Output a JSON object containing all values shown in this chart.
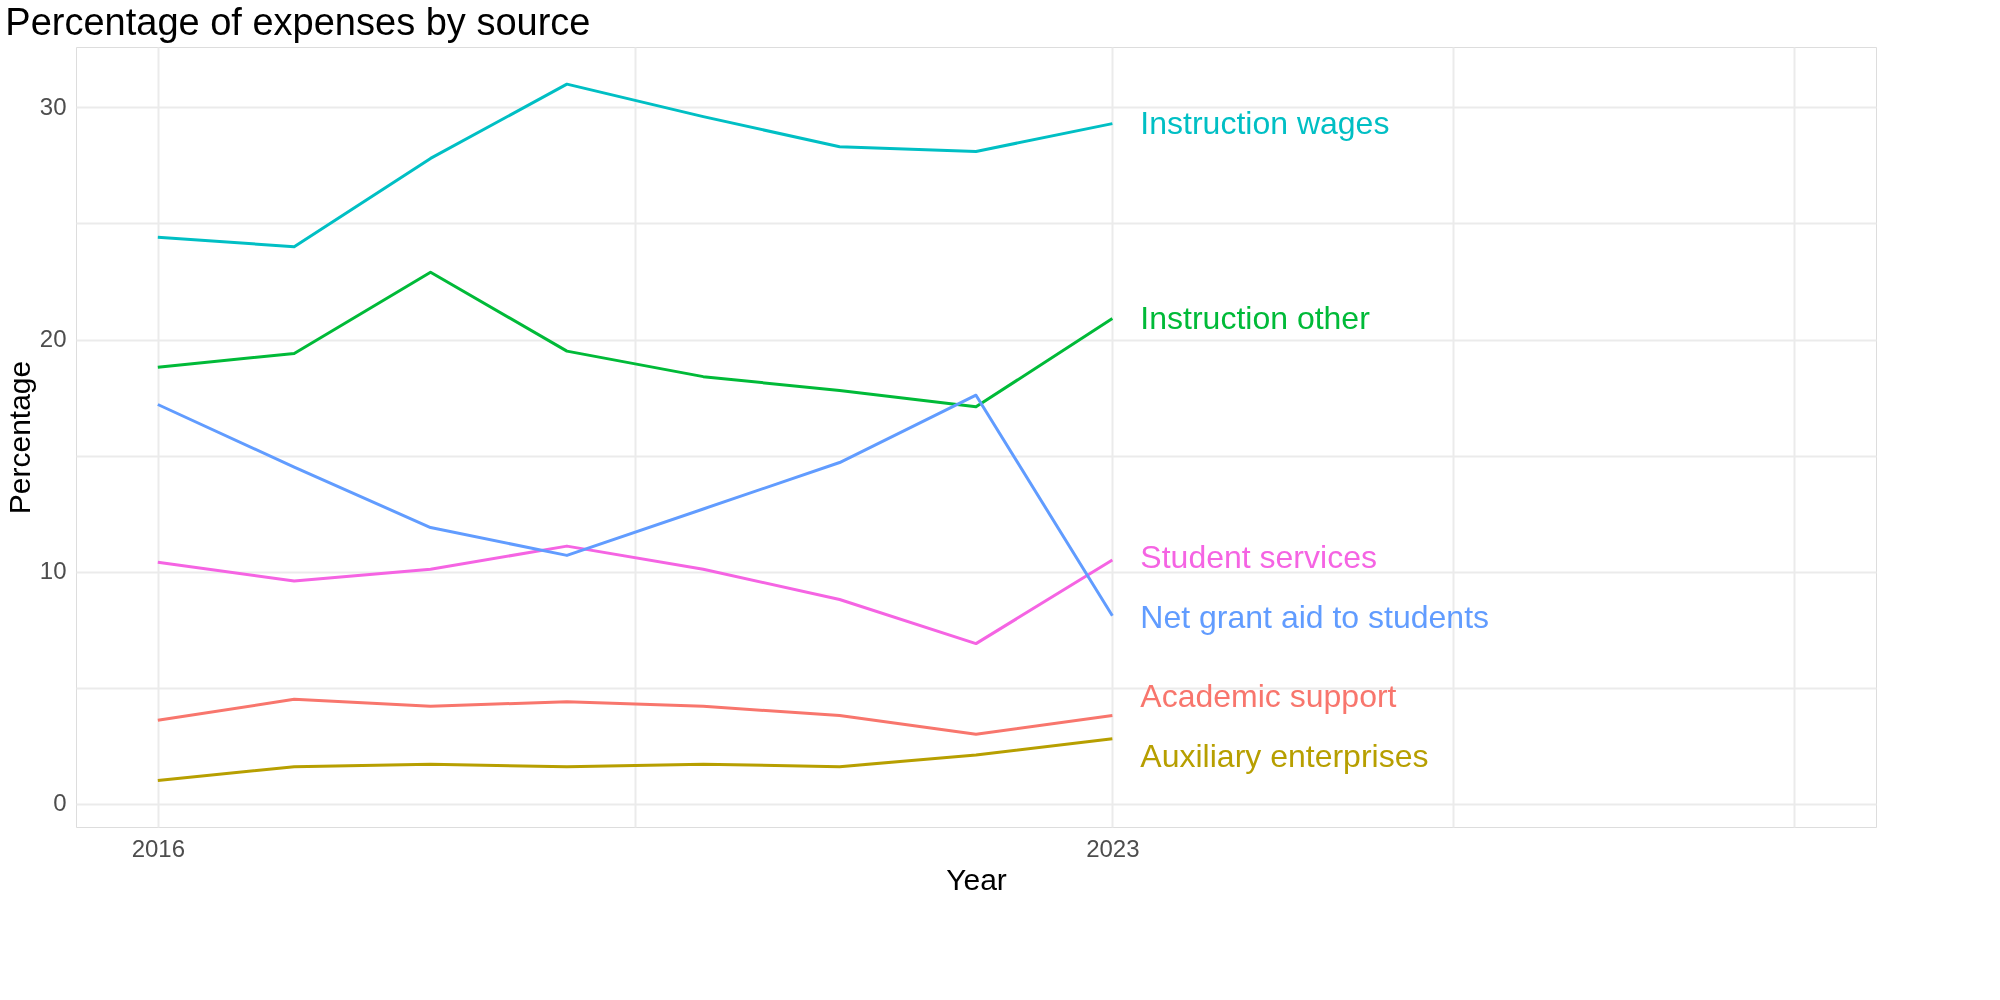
{
  "chart_data": {
    "type": "line",
    "title": "Percentage of expenses by source",
    "xlabel": "Year",
    "ylabel": "Percentage",
    "x": [
      2016,
      2017,
      2018,
      2019,
      2020,
      2021,
      2022,
      2023
    ],
    "series": [
      {
        "name": "Instruction wages",
        "color": "#00bfc4",
        "values": [
          24.4,
          24.0,
          27.8,
          31.0,
          29.6,
          28.3,
          28.1,
          29.3
        ]
      },
      {
        "name": "Instruction other",
        "color": "#00ba38",
        "values": [
          18.8,
          19.4,
          22.9,
          19.5,
          18.4,
          17.8,
          17.1,
          20.9
        ]
      },
      {
        "name": "Student services",
        "color": "#f564e3",
        "values": [
          10.4,
          9.6,
          10.1,
          11.1,
          10.1,
          8.8,
          6.9,
          10.5
        ]
      },
      {
        "name": "Net grant aid to students",
        "color": "#619cff",
        "values": [
          17.2,
          14.5,
          11.9,
          10.7,
          12.7,
          14.7,
          17.6,
          8.1
        ]
      },
      {
        "name": "Academic support",
        "color": "#f8766d",
        "values": [
          3.6,
          4.5,
          4.2,
          4.4,
          4.2,
          3.8,
          3.0,
          3.8
        ]
      },
      {
        "name": "Auxiliary enterprises",
        "color": "#b79f00",
        "values": [
          1.0,
          1.6,
          1.7,
          1.6,
          1.7,
          1.6,
          2.1,
          2.8
        ]
      }
    ],
    "xlim": [
      2015.4,
      2028.6
    ],
    "xticks": [
      2016,
      {
        "value": 2019.5,
        "label": null
      },
      2023,
      {
        "value": 2025.5,
        "label": null
      },
      {
        "value": 2028,
        "label": null
      }
    ],
    "ylim": [
      -1,
      32.6
    ],
    "yticks": [
      0,
      {
        "value": 5,
        "label": null
      },
      10,
      {
        "value": 15,
        "label": null
      },
      20,
      {
        "value": 25,
        "label": null
      },
      30
    ],
    "grid": true,
    "legend": false
  }
}
